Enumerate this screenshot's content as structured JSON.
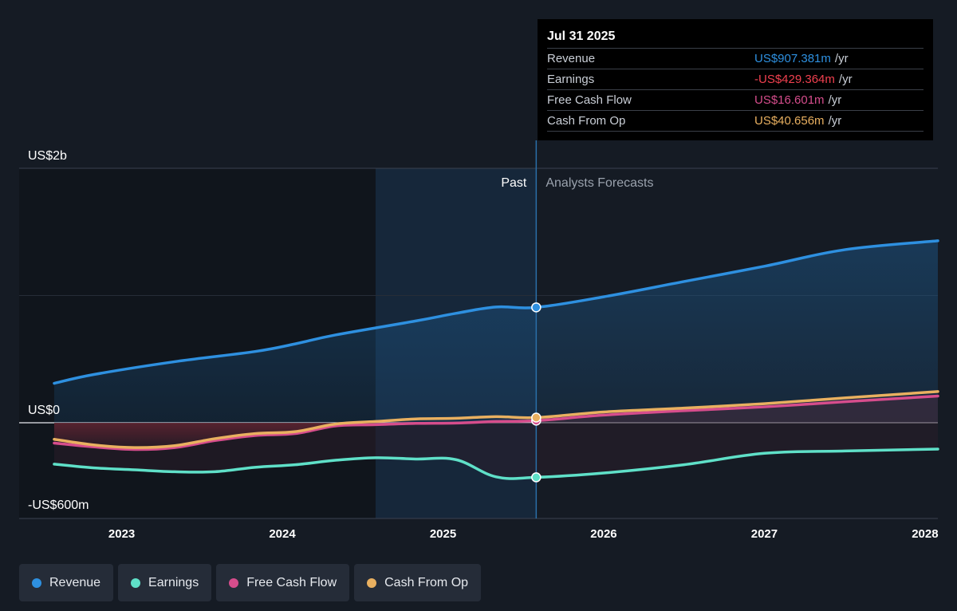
{
  "tooltip": {
    "date": "Jul 31 2025",
    "rows": [
      {
        "label": "Revenue",
        "value": "US$907.381m",
        "unit": "/yr",
        "color": "#2e90e0"
      },
      {
        "label": "Earnings",
        "value": "-US$429.364m",
        "unit": "/yr",
        "color": "#f0404f"
      },
      {
        "label": "Free Cash Flow",
        "value": "US$16.601m",
        "unit": "/yr",
        "color": "#d64d8c"
      },
      {
        "label": "Cash From Op",
        "value": "US$40.656m",
        "unit": "/yr",
        "color": "#e9b060"
      }
    ]
  },
  "legend": [
    {
      "label": "Revenue",
      "color": "#2e90e0"
    },
    {
      "label": "Earnings",
      "color": "#5fe0c8"
    },
    {
      "label": "Free Cash Flow",
      "color": "#d64d8c"
    },
    {
      "label": "Cash From Op",
      "color": "#e9b060"
    }
  ],
  "chart_data": {
    "type": "line",
    "title": "",
    "xlabel": "",
    "ylabel": "",
    "y_tick_labels": [
      "US$2b",
      "US$0",
      "-US$600m"
    ],
    "x_tick_labels": [
      "2023",
      "2024",
      "2025",
      "2026",
      "2027",
      "2028"
    ],
    "region_labels": {
      "past": "Past",
      "forecast": "Analysts Forecasts"
    },
    "xlim": [
      2022.6,
      2028.08
    ],
    "ylim": [
      -600,
      2000
    ],
    "divider_x": 2025.58,
    "past_shade_start": 2024.58,
    "grid": true,
    "legend_position": "bottom",
    "units": "US$ millions",
    "series": [
      {
        "name": "Revenue",
        "color": "#2e90e0",
        "points": [
          [
            2022.58,
            310
          ],
          [
            2022.83,
            380
          ],
          [
            2023.33,
            480
          ],
          [
            2023.83,
            560
          ],
          [
            2024.08,
            620
          ],
          [
            2024.33,
            690
          ],
          [
            2024.83,
            800
          ],
          [
            2025.08,
            860
          ],
          [
            2025.33,
            910
          ],
          [
            2025.58,
            907
          ],
          [
            2026.0,
            990
          ],
          [
            2026.5,
            1110
          ],
          [
            2027.0,
            1230
          ],
          [
            2027.5,
            1360
          ],
          [
            2028.08,
            1430
          ]
        ]
      },
      {
        "name": "Earnings",
        "color": "#5fe0c8",
        "points": [
          [
            2022.58,
            -325
          ],
          [
            2022.83,
            -355
          ],
          [
            2023.08,
            -370
          ],
          [
            2023.33,
            -385
          ],
          [
            2023.58,
            -385
          ],
          [
            2023.83,
            -350
          ],
          [
            2024.08,
            -330
          ],
          [
            2024.33,
            -295
          ],
          [
            2024.58,
            -275
          ],
          [
            2024.83,
            -285
          ],
          [
            2025.08,
            -290
          ],
          [
            2025.33,
            -425
          ],
          [
            2025.58,
            -429
          ],
          [
            2026.0,
            -395
          ],
          [
            2026.5,
            -330
          ],
          [
            2027.0,
            -240
          ],
          [
            2027.5,
            -222
          ],
          [
            2028.08,
            -207
          ]
        ]
      },
      {
        "name": "Free Cash Flow",
        "color": "#d64d8c",
        "points": [
          [
            2022.58,
            -160
          ],
          [
            2022.83,
            -190
          ],
          [
            2023.08,
            -210
          ],
          [
            2023.33,
            -195
          ],
          [
            2023.58,
            -140
          ],
          [
            2023.83,
            -100
          ],
          [
            2024.08,
            -85
          ],
          [
            2024.33,
            -25
          ],
          [
            2024.58,
            -15
          ],
          [
            2024.83,
            -5
          ],
          [
            2025.08,
            -2
          ],
          [
            2025.33,
            10
          ],
          [
            2025.58,
            16.6
          ],
          [
            2026.0,
            60
          ],
          [
            2026.5,
            95
          ],
          [
            2027.0,
            125
          ],
          [
            2027.5,
            165
          ],
          [
            2028.08,
            210
          ]
        ]
      },
      {
        "name": "Cash From Op",
        "color": "#e9b060",
        "points": [
          [
            2022.58,
            -130
          ],
          [
            2022.83,
            -175
          ],
          [
            2023.08,
            -195
          ],
          [
            2023.33,
            -180
          ],
          [
            2023.58,
            -125
          ],
          [
            2023.83,
            -85
          ],
          [
            2024.08,
            -70
          ],
          [
            2024.33,
            -10
          ],
          [
            2024.58,
            10
          ],
          [
            2024.83,
            30
          ],
          [
            2025.08,
            35
          ],
          [
            2025.33,
            48
          ],
          [
            2025.58,
            40.7
          ],
          [
            2026.0,
            85
          ],
          [
            2026.5,
            115
          ],
          [
            2027.0,
            150
          ],
          [
            2027.5,
            195
          ],
          [
            2028.08,
            245
          ]
        ]
      }
    ]
  }
}
